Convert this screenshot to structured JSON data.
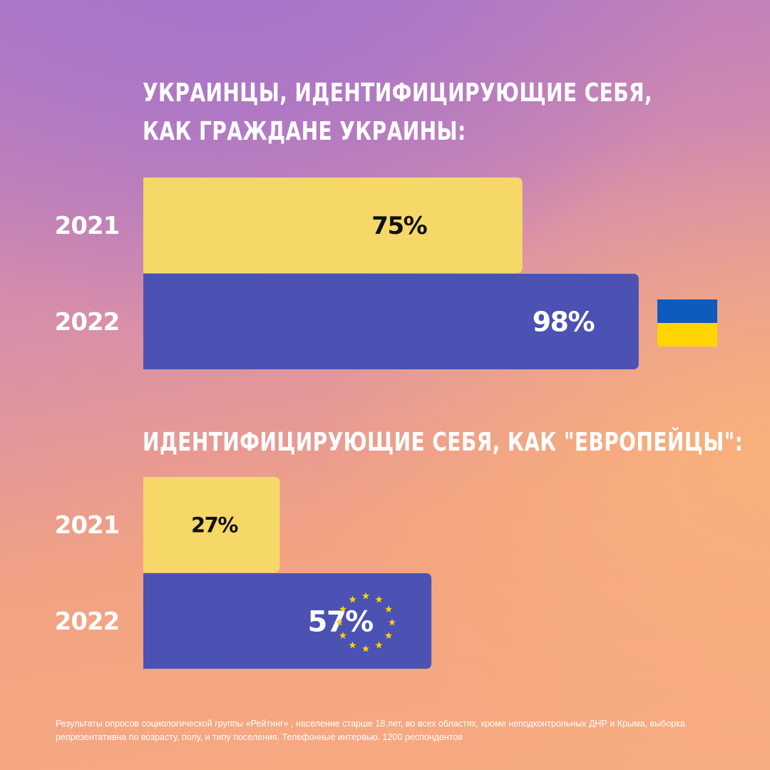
{
  "colors": {
    "bar_2021": "#f6d868",
    "bar_2022": "#4b52b3",
    "label_2021": "#111111",
    "label_2022": "#ffffff",
    "flag_ua_blue": "#0f5bbd",
    "flag_ua_yellow": "#ffd400",
    "eu_star": "#ffd400"
  },
  "chart_data": [
    {
      "type": "bar",
      "orientation": "horizontal",
      "title": "Украинцы, идентифицирующие себя, как граждане Украины:",
      "title_lines": [
        "Украинцы, идентифицирующие себя,",
        "как граждане Украины:"
      ],
      "categories": [
        "2021",
        "2022"
      ],
      "values": [
        75,
        98
      ],
      "value_labels": [
        "75%",
        "98%"
      ],
      "unit": "%",
      "xlim": [
        0,
        100
      ],
      "icon": "ukraine-flag-icon"
    },
    {
      "type": "bar",
      "orientation": "horizontal",
      "title": "Идентифицирующие себя, как \"европейцы\":",
      "title_lines": [
        "Идентифицирующие себя, как \"европейцы\":"
      ],
      "categories": [
        "2021",
        "2022"
      ],
      "values": [
        27,
        57
      ],
      "value_labels": [
        "27%",
        "57%"
      ],
      "unit": "%",
      "xlim": [
        0,
        100
      ],
      "icon": "eu-stars-icon"
    }
  ],
  "footnote": "Результаты опросов социологической группы «Рейтинг» , население старше 18 лет, во всех областях, кроме неподконтрольных ДНР и Крыма, выборка репрезентативна по возрасту, полу, и типу поселения. Телефонные интервью. 1200 респондентов"
}
